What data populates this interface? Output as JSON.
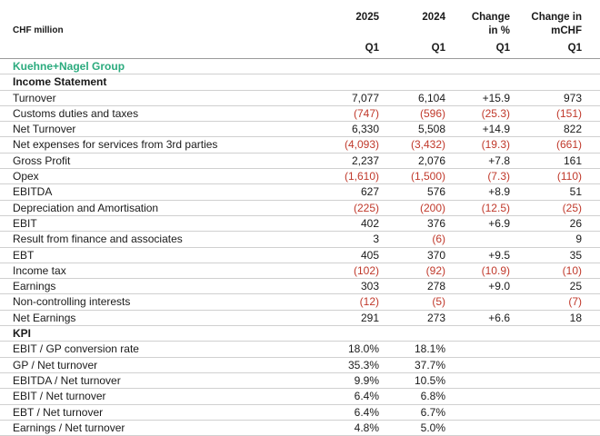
{
  "header": {
    "unit_label": "CHF million",
    "col1_line1": "2025",
    "col1_line2": "",
    "col1_q": "Q1",
    "col2_line1": "2024",
    "col2_line2": "",
    "col2_q": "Q1",
    "col3_line1": "Change",
    "col3_line2": "in %",
    "col3_q": "Q1",
    "col4_line1": "Change in",
    "col4_line2": "mCHF",
    "col4_q": "Q1"
  },
  "group_label": "Kuehne+Nagel Group",
  "section_income": "Income Statement",
  "income_rows": [
    {
      "label": "Turnover",
      "c1": "7,077",
      "c2": "6,104",
      "c3": "+15.9",
      "c4": "973"
    },
    {
      "label": "Customs duties and taxes",
      "c1": "(747)",
      "c2": "(596)",
      "c3": "(25.3)",
      "c4": "(151)"
    },
    {
      "label": "Net Turnover",
      "c1": "6,330",
      "c2": "5,508",
      "c3": "+14.9",
      "c4": "822"
    },
    {
      "label": "Net expenses for services from 3rd parties",
      "c1": "(4,093)",
      "c2": "(3,432)",
      "c3": "(19.3)",
      "c4": "(661)"
    },
    {
      "label": "Gross Profit",
      "c1": "2,237",
      "c2": "2,076",
      "c3": "+7.8",
      "c4": "161"
    },
    {
      "label": "Opex",
      "c1": "(1,610)",
      "c2": "(1,500)",
      "c3": "(7.3)",
      "c4": "(110)"
    },
    {
      "label": "EBITDA",
      "c1": "627",
      "c2": "576",
      "c3": "+8.9",
      "c4": "51"
    },
    {
      "label": "Depreciation and Amortisation",
      "c1": "(225)",
      "c2": "(200)",
      "c3": "(12.5)",
      "c4": "(25)"
    },
    {
      "label": "EBIT",
      "c1": "402",
      "c2": "376",
      "c3": "+6.9",
      "c4": "26"
    },
    {
      "label": "Result from finance and associates",
      "c1": "3",
      "c2": "(6)",
      "c3": "",
      "c4": "9"
    },
    {
      "label": "EBT",
      "c1": "405",
      "c2": "370",
      "c3": "+9.5",
      "c4": "35"
    },
    {
      "label": "Income tax",
      "c1": "(102)",
      "c2": "(92)",
      "c3": "(10.9)",
      "c4": "(10)"
    },
    {
      "label": "Earnings",
      "c1": "303",
      "c2": "278",
      "c3": "+9.0",
      "c4": "25"
    },
    {
      "label": "Non-controlling interests",
      "c1": "(12)",
      "c2": "(5)",
      "c3": "",
      "c4": "(7)"
    },
    {
      "label": "Net Earnings",
      "c1": "291",
      "c2": "273",
      "c3": "+6.6",
      "c4": "18"
    }
  ],
  "section_kpi": "KPI",
  "kpi_rows": [
    {
      "label": "EBIT / GP conversion rate",
      "c1": "18.0%",
      "c2": "18.1%",
      "c3": "",
      "c4": ""
    },
    {
      "label": "GP / Net turnover",
      "c1": "35.3%",
      "c2": "37.7%",
      "c3": "",
      "c4": ""
    },
    {
      "label": "EBITDA / Net turnover",
      "c1": "9.9%",
      "c2": "10.5%",
      "c3": "",
      "c4": ""
    },
    {
      "label": "EBIT / Net turnover",
      "c1": "6.4%",
      "c2": "6.8%",
      "c3": "",
      "c4": ""
    },
    {
      "label": "EBT / Net turnover",
      "c1": "6.4%",
      "c2": "6.7%",
      "c3": "",
      "c4": ""
    },
    {
      "label": "Earnings / Net turnover",
      "c1": "4.8%",
      "c2": "5.0%",
      "c3": "",
      "c4": ""
    }
  ],
  "colors": {
    "negative": "#c0392b",
    "group_label": "#2bab7e"
  }
}
